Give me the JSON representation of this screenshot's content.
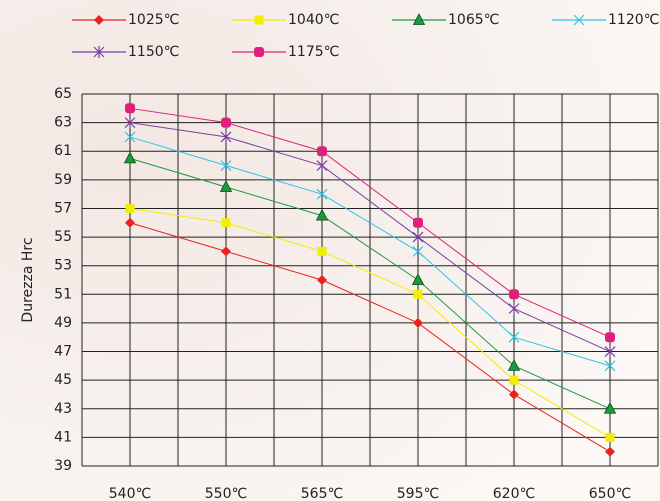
{
  "chart_data": {
    "type": "line",
    "y_label": "Durezza Hrc",
    "categories": [
      "540℃",
      "550℃",
      "565℃",
      "595℃",
      "620℃",
      "650℃"
    ],
    "series": [
      {
        "name": "1025℃",
        "color": "#e8231f",
        "marker": "diamond",
        "values": [
          56,
          54,
          52,
          49,
          44,
          40
        ]
      },
      {
        "name": "1040℃",
        "color": "#f2ee00",
        "marker": "square",
        "values": [
          57,
          56,
          54,
          51,
          45,
          41
        ]
      },
      {
        "name": "1065℃",
        "color": "#1a9a3a",
        "marker": "triangle",
        "values": [
          60.5,
          58.5,
          56.5,
          52,
          46,
          43
        ]
      },
      {
        "name": "1120℃",
        "color": "#2ec4e8",
        "marker": "x",
        "values": [
          62,
          60,
          58,
          54,
          48,
          46
        ]
      },
      {
        "name": "1150℃",
        "color": "#7a3fa0",
        "marker": "star",
        "values": [
          63,
          62,
          60,
          55,
          50,
          47
        ]
      },
      {
        "name": "1175℃",
        "color": "#e0207a",
        "marker": "circle",
        "values": [
          64,
          63,
          61,
          56,
          51,
          48
        ]
      }
    ],
    "ylim": [
      39,
      65
    ],
    "yticks": [
      39,
      41,
      43,
      45,
      47,
      49,
      51,
      53,
      55,
      57,
      59,
      61,
      63,
      65
    ],
    "grid": true
  }
}
